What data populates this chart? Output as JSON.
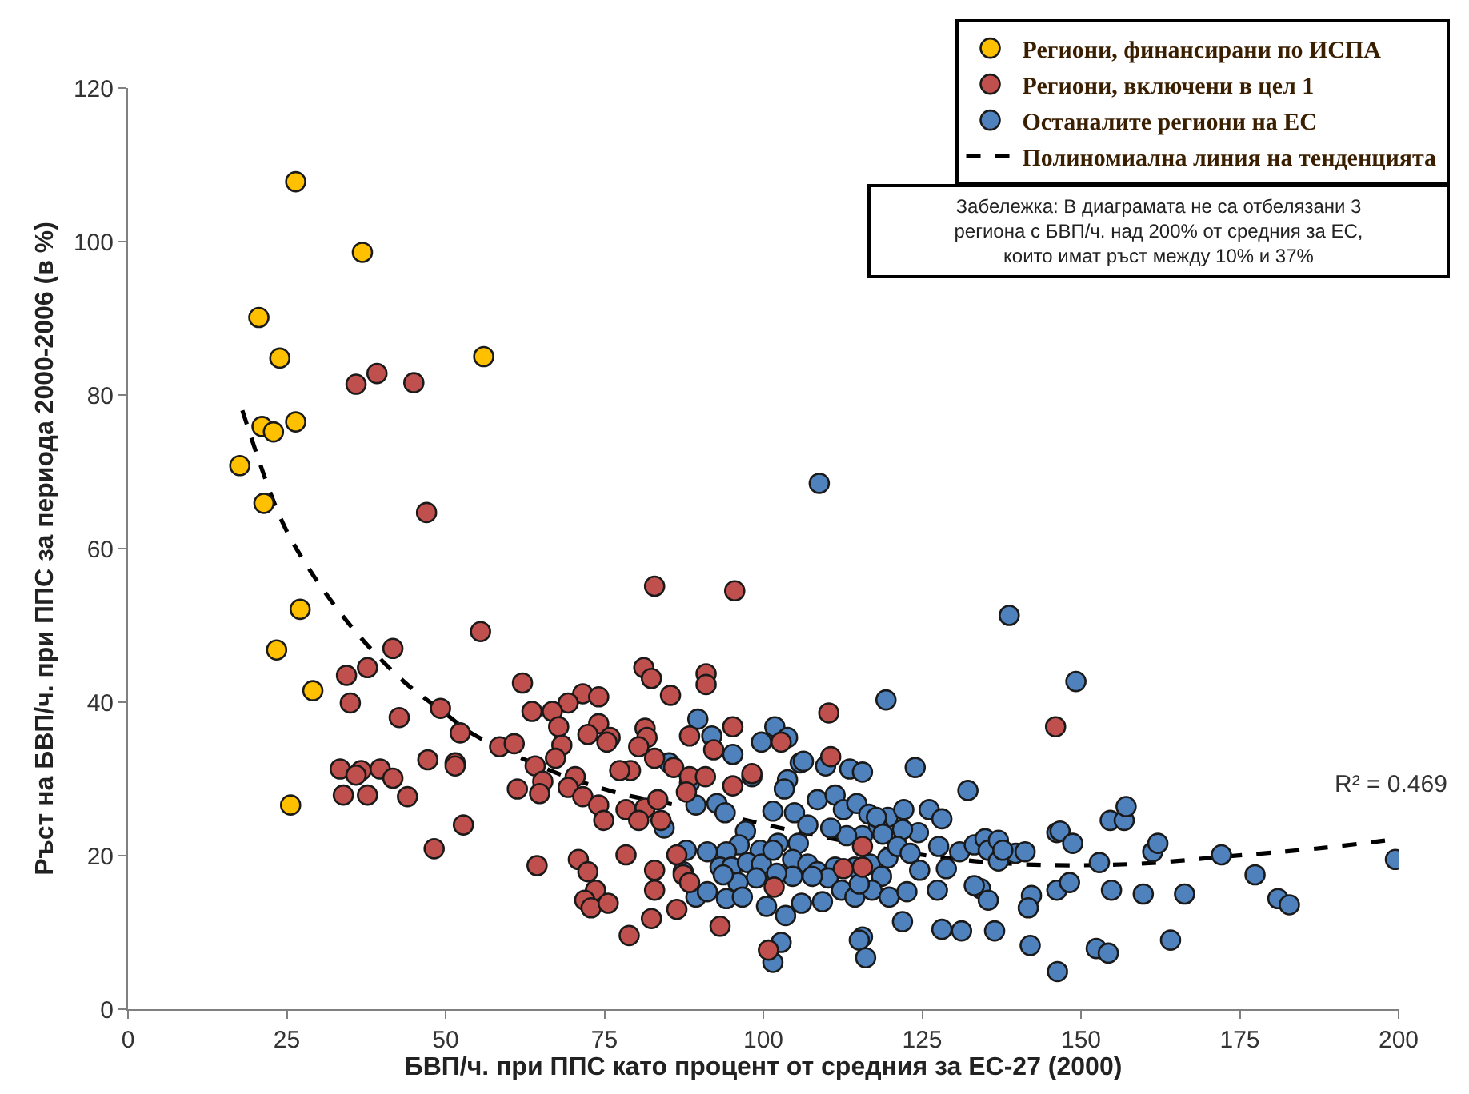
{
  "chart_data": {
    "type": "scatter",
    "xlabel": "БВП/ч. при ППС като процент от средния за ЕС-27 (2000)",
    "ylabel": "Ръст на БВП/ч. при ППС за периода 2000-2006 (в %)",
    "xlim": [
      0,
      200
    ],
    "xticks": [
      0,
      25,
      50,
      75,
      100,
      125,
      150,
      175,
      200
    ],
    "ylim": [
      0,
      120
    ],
    "yticks": [
      0,
      20,
      40,
      60,
      80,
      100,
      120
    ],
    "legend": "top right",
    "marker": "circle",
    "series": [
      {
        "name": "Региони, финансирани по ИСПА",
        "color": "#ffc000",
        "x": [
          26.4,
          36.9,
          20.6,
          23.9,
          56.0,
          26.4,
          21.1,
          22.9,
          17.6,
          21.4,
          27.1,
          23.4,
          29.1,
          25.6
        ],
        "values": [
          107.8,
          98.6,
          90.1,
          84.8,
          85.0,
          76.5,
          75.9,
          75.2,
          70.8,
          65.9,
          52.1,
          46.8,
          41.5,
          26.6
        ]
      },
      {
        "name": "Региони, включени в цел 1",
        "color": "#c0504d",
        "x": [
          39.2,
          35.9,
          45.0,
          47.0,
          55.5,
          82.9,
          95.5,
          34.4,
          37.7,
          41.7,
          35.0,
          42.7,
          49.2,
          52.3,
          62.1,
          81.2,
          82.4,
          91.0,
          91.0,
          85.4,
          71.6,
          74.1,
          69.3,
          63.6,
          66.8,
          74.1,
          67.8,
          75.9,
          81.4,
          81.7,
          95.2,
          92.2,
          102.8,
          110.3,
          33.4,
          36.7,
          39.7,
          41.7,
          35.9,
          47.2,
          51.5,
          51.5,
          58.5,
          60.8,
          68.3,
          72.4,
          75.4,
          79.1,
          82.9,
          80.4,
          88.4,
          67.3,
          64.1,
          65.3,
          70.4,
          69.3,
          77.4,
          85.9,
          88.4,
          90.9,
          95.2,
          98.2,
          33.9,
          37.7,
          44.0,
          61.3,
          64.8,
          71.6,
          74.1,
          78.4,
          81.4,
          83.4,
          87.9,
          83.9,
          74.9,
          80.4,
          48.2,
          52.8,
          64.4,
          70.9,
          78.4,
          72.4,
          86.4,
          87.4,
          88.4,
          82.9,
          73.6,
          71.9,
          72.9,
          75.6,
          82.9,
          82.4,
          86.4,
          78.9,
          93.2,
          100.8,
          112.6,
          115.6,
          115.6,
          110.6,
          146.0,
          101.7
        ],
        "values": [
          82.8,
          81.4,
          81.6,
          64.7,
          49.2,
          55.1,
          54.5,
          43.5,
          44.5,
          47.0,
          39.9,
          38.0,
          39.2,
          36.0,
          42.5,
          44.5,
          43.1,
          43.7,
          42.3,
          40.9,
          41.1,
          40.7,
          39.9,
          38.8,
          38.8,
          37.2,
          36.8,
          35.4,
          36.6,
          35.4,
          36.8,
          33.8,
          34.8,
          38.6,
          31.3,
          31.1,
          31.3,
          30.1,
          30.5,
          32.5,
          32.1,
          31.7,
          34.2,
          34.6,
          34.4,
          35.8,
          34.8,
          31.1,
          32.7,
          34.2,
          35.6,
          32.7,
          31.7,
          29.7,
          30.3,
          28.9,
          31.1,
          31.5,
          30.3,
          30.3,
          29.1,
          30.7,
          27.9,
          27.9,
          27.7,
          28.7,
          28.1,
          27.7,
          26.6,
          26.0,
          26.2,
          27.3,
          28.3,
          24.6,
          24.6,
          24.6,
          20.9,
          24.0,
          18.7,
          19.5,
          20.1,
          17.9,
          20.1,
          17.5,
          16.5,
          18.1,
          15.5,
          14.2,
          13.2,
          13.8,
          15.5,
          11.8,
          13.0,
          9.6,
          10.8,
          7.7,
          18.3,
          21.2,
          18.5,
          32.9,
          36.8,
          15.9
        ]
      },
      {
        "name": "Останалите региони на ЕС",
        "color": "#4f81bd",
        "x": [
          108.8,
          138.7,
          149.2,
          119.3,
          101.8,
          103.8,
          105.8,
          99.7,
          89.7,
          91.9,
          95.2,
          98.2,
          103.8,
          106.3,
          109.8,
          113.6,
          123.9,
          132.2,
          115.6,
          85.2,
          84.4,
          88.4,
          89.4,
          92.7,
          94.0,
          97.2,
          101.5,
          103.3,
          104.9,
          107.0,
          108.5,
          111.3,
          112.6,
          114.7,
          116.6,
          119.6,
          122.1,
          126.1,
          128.1,
          124.4,
          121.9,
          118.1,
          115.6,
          113.1,
          110.6,
          105.5,
          102.3,
          99.5,
          96.2,
          94.2,
          91.2,
          87.9,
          93.2,
          87.4,
          89.4,
          91.2,
          95.0,
          97.5,
          99.7,
          101.5,
          104.6,
          107.0,
          108.5,
          111.3,
          114.4,
          116.8,
          119.6,
          121.1,
          123.1,
          127.6,
          130.9,
          133.2,
          134.9,
          135.4,
          137.0,
          139.7,
          128.8,
          124.6,
          118.6,
          110.2,
          107.7,
          104.6,
          102.1,
          98.9,
          96.0,
          93.7,
          94.2,
          96.7,
          100.5,
          103.5,
          106.0,
          109.3,
          112.3,
          114.4,
          117.1,
          119.8,
          122.6,
          127.4,
          134.2,
          135.4,
          142.2,
          146.2,
          148.2,
          154.8,
          159.8,
          166.3,
          141.7,
          128.1,
          121.9,
          115.6,
          115.1,
          131.2,
          136.4,
          142.0,
          152.4,
          154.3,
          164.1,
          146.3,
          133.2,
          141.2,
          146.2,
          146.7,
          148.7,
          152.9,
          154.6,
          156.8,
          157.1,
          161.3,
          162.1,
          172.1,
          177.4,
          181.0,
          182.8,
          199.5,
          101.5,
          116.1,
          117.8,
          118.8,
          137.0,
          137.7,
          115.1,
          102.8
        ],
        "values": [
          68.5,
          51.3,
          42.7,
          40.3,
          36.8,
          35.4,
          32.1,
          34.8,
          37.8,
          35.6,
          33.2,
          30.3,
          29.9,
          32.3,
          31.7,
          31.3,
          31.5,
          28.5,
          30.9,
          32.1,
          23.6,
          29.5,
          26.6,
          26.8,
          25.6,
          23.2,
          25.8,
          28.7,
          25.6,
          24.0,
          27.3,
          27.9,
          26.0,
          26.8,
          25.4,
          25.0,
          26.0,
          26.0,
          24.8,
          23.0,
          23.4,
          23.6,
          22.6,
          22.6,
          23.6,
          21.6,
          21.6,
          20.7,
          21.4,
          20.5,
          20.5,
          20.7,
          18.5,
          17.9,
          14.6,
          15.3,
          18.5,
          19.1,
          18.9,
          20.7,
          19.5,
          18.9,
          17.9,
          18.5,
          18.5,
          18.9,
          19.7,
          21.2,
          20.3,
          21.2,
          20.5,
          21.4,
          22.2,
          20.7,
          19.3,
          20.3,
          18.3,
          18.1,
          17.3,
          17.1,
          17.3,
          17.3,
          17.7,
          17.1,
          16.5,
          17.5,
          14.4,
          14.6,
          13.4,
          12.2,
          13.8,
          14.0,
          15.5,
          14.6,
          15.5,
          14.6,
          15.3,
          15.5,
          15.7,
          14.2,
          14.8,
          15.5,
          16.5,
          15.5,
          15.0,
          15.0,
          13.2,
          10.4,
          11.4,
          9.4,
          9.0,
          10.2,
          10.2,
          8.3,
          7.9,
          7.3,
          9.0,
          4.9,
          16.1,
          20.5,
          23.0,
          23.2,
          21.6,
          19.1,
          24.6,
          24.6,
          26.4,
          20.5,
          21.6,
          20.1,
          17.5,
          14.4,
          13.6,
          19.5,
          6.1,
          6.7,
          25.0,
          22.8,
          22.0,
          20.7,
          16.3,
          8.7
        ]
      },
      {
        "name": "Полиномиална линия на тенденцията",
        "type": "line",
        "line_style": "dashed",
        "marker": "none",
        "color": "#000000",
        "x": [
          18,
          24,
          28,
          35,
          43,
          50,
          54,
          62,
          70,
          78,
          90,
          105,
          125,
          140,
          158,
          173,
          188,
          200
        ],
        "values": [
          78,
          64,
          58,
          50,
          43,
          38.5,
          36,
          32.7,
          30,
          28,
          26,
          23.2,
          20.1,
          18.9,
          18.9,
          19.9,
          21,
          22.2
        ]
      }
    ],
    "annotations": [
      "R² = 0.469",
      "Забележка: В диаграмата не са отбелязани 3 региона с БВП/ч. над 200% от средния за ЕС, които имат ръст между 10% и 37%"
    ]
  }
}
